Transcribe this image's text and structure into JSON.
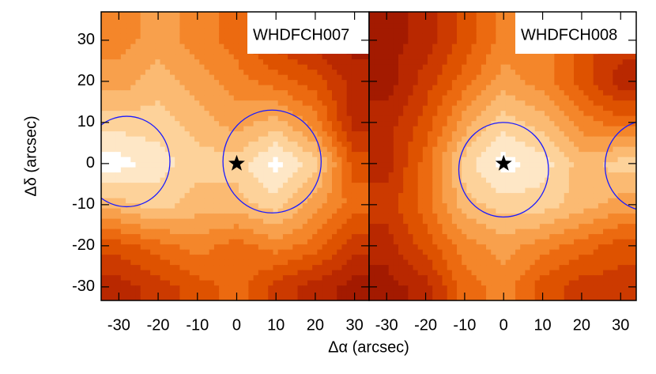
{
  "chart_data": [
    {
      "type": "contour",
      "title": "WHDFCH007",
      "x_label": "Δα (arcsec)",
      "y_label": "Δδ (arcsec)",
      "xlim": [
        -34.5,
        33.7
      ],
      "ylim": [
        -33.3,
        36.9
      ],
      "xticks": [
        -30,
        -20,
        -10,
        0,
        10,
        20,
        30
      ],
      "yticks": [
        -30,
        -20,
        -10,
        0,
        10,
        20,
        30
      ],
      "grid_x": [
        -30,
        -20,
        -10,
        0,
        10,
        20,
        30
      ],
      "grid_y": [
        30,
        20,
        10,
        0,
        -10,
        -20,
        -30
      ],
      "z": [
        [
          5,
          6,
          5,
          4,
          2,
          1,
          0
        ],
        [
          6,
          7,
          6,
          5,
          4,
          3,
          1
        ],
        [
          8,
          8,
          7,
          6,
          7,
          5,
          1
        ],
        [
          10,
          9,
          8,
          8,
          10,
          8,
          3
        ],
        [
          7,
          8,
          7,
          7,
          8,
          6,
          4
        ],
        [
          3,
          4,
          5,
          4,
          5,
          4,
          2
        ],
        [
          1,
          2,
          3,
          4,
          2,
          1,
          0
        ]
      ],
      "colors": [
        "#a31a00",
        "#b92800",
        "#cc3a00",
        "#de5200",
        "#ec6a10",
        "#f4862a",
        "#f8a04c",
        "#fbba72",
        "#fdd29a",
        "#fee7c6",
        "#ffffff"
      ],
      "circles": [
        {
          "x": -28,
          "y": 0.5,
          "r": 11
        },
        {
          "x": 9,
          "y": 0.5,
          "r": 12.5
        }
      ],
      "circle_color": "#1a1aff",
      "star": {
        "x": 0,
        "y": 0
      }
    },
    {
      "type": "contour",
      "title": "WHDFCH008",
      "xlim": [
        -34.5,
        34
      ],
      "ylim": [
        -33.3,
        36.9
      ],
      "xticks": [
        -30,
        -20,
        -10,
        0,
        10,
        20,
        30
      ],
      "yticks": [
        -30,
        -20,
        -10,
        0,
        10,
        20,
        30
      ],
      "grid_x": [
        -30,
        -20,
        -10,
        0,
        10,
        20,
        30
      ],
      "grid_y": [
        30,
        20,
        10,
        0,
        -10,
        -20,
        -30
      ],
      "z": [
        [
          0,
          1,
          3,
          5,
          5,
          3,
          2
        ],
        [
          0,
          2,
          4,
          6,
          5,
          3,
          1
        ],
        [
          1,
          3,
          6,
          8,
          7,
          5,
          4
        ],
        [
          1,
          4,
          8,
          10,
          9,
          7,
          8
        ],
        [
          2,
          4,
          7,
          8,
          8,
          7,
          6
        ],
        [
          1,
          3,
          5,
          6,
          5,
          4,
          3
        ],
        [
          0,
          1,
          4,
          5,
          3,
          2,
          2
        ]
      ],
      "colors": [
        "#a31a00",
        "#b92800",
        "#cc3a00",
        "#de5200",
        "#ec6a10",
        "#f4862a",
        "#f8a04c",
        "#fbba72",
        "#fdd29a",
        "#fee7c6",
        "#ffffff"
      ],
      "circles": [
        {
          "x": 0,
          "y": -1.5,
          "r": 11.5
        },
        {
          "x": 37,
          "y": -0.5,
          "r": 11
        }
      ],
      "circle_color": "#1a1aff",
      "star": {
        "x": 0,
        "y": 0
      }
    }
  ]
}
